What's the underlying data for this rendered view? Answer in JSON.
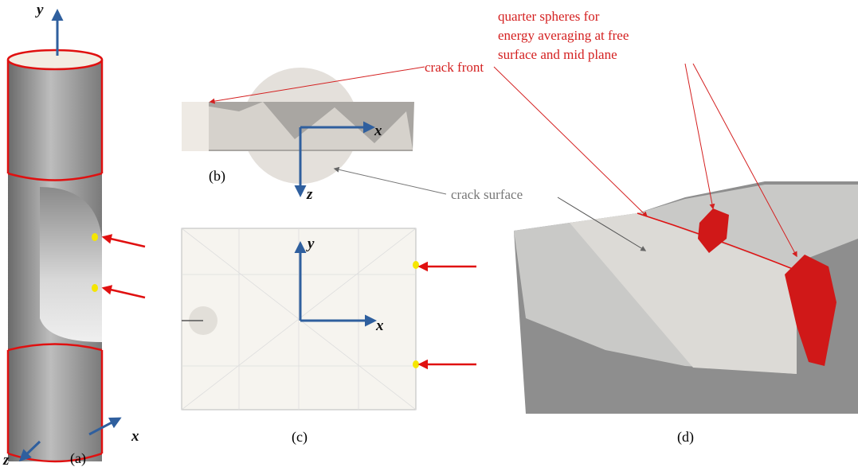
{
  "panels": [
    {
      "label": "(a)",
      "axes": [
        "y",
        "x",
        "z"
      ]
    },
    {
      "label": "(b)",
      "axes": [
        "x",
        "z"
      ]
    },
    {
      "label": "(c)",
      "axes": [
        "y",
        "x"
      ]
    },
    {
      "label": "(d)"
    }
  ],
  "annotations": {
    "crack_front": "crack front",
    "quarter_spheres": [
      "quarter spheres for",
      "energy averaging at free",
      "surface and mid plane"
    ],
    "crack_surface": "crack surface"
  }
}
